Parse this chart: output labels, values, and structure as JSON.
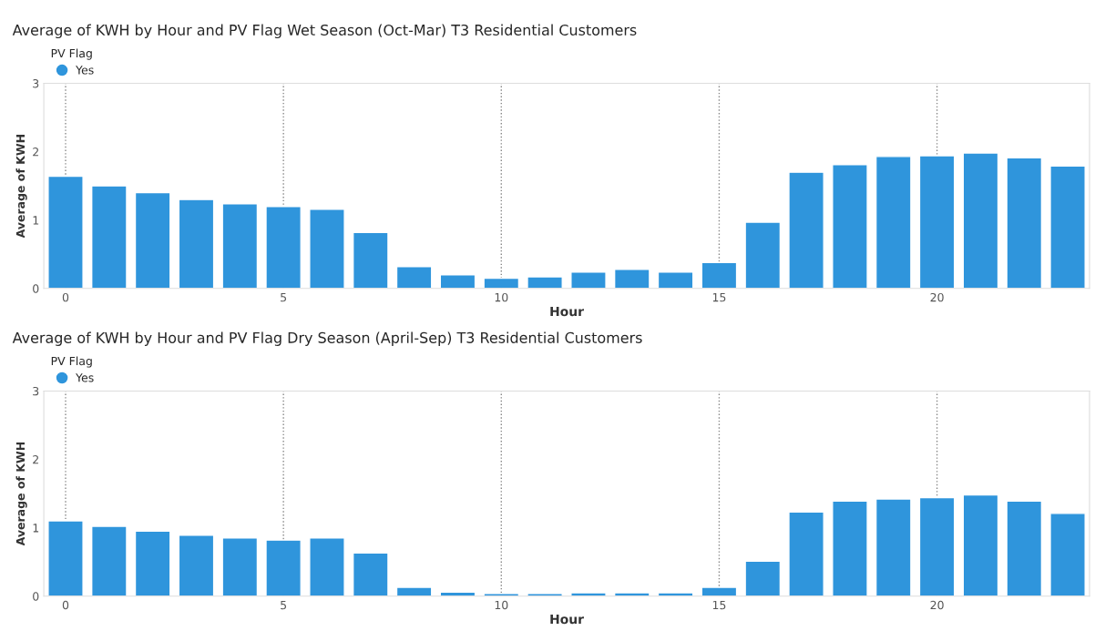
{
  "chart_data": [
    {
      "type": "bar",
      "title": "Average of KWH by Hour and PV Flag Wet Season (Oct-Mar) T3 Residential Customers",
      "xlabel": "Hour",
      "ylabel": "Average of KWH",
      "legend_title": "PV Flag",
      "legend": "top left",
      "grid": "x",
      "x": [
        0,
        1,
        2,
        3,
        4,
        5,
        6,
        7,
        8,
        9,
        10,
        11,
        12,
        13,
        14,
        15,
        16,
        17,
        18,
        19,
        20,
        21,
        22,
        23
      ],
      "series": [
        {
          "name": "Yes",
          "color": "#2f95dc",
          "values": [
            1.64,
            1.5,
            1.4,
            1.3,
            1.24,
            1.2,
            1.16,
            0.82,
            0.32,
            0.2,
            0.15,
            0.17,
            0.24,
            0.28,
            0.24,
            0.38,
            0.97,
            1.7,
            1.81,
            1.93,
            1.94,
            1.98,
            1.91,
            1.79
          ]
        }
      ],
      "xlim": [
        -0.5,
        23.5
      ],
      "xticks": [
        0,
        5,
        10,
        15,
        20
      ],
      "ylim": [
        0,
        3
      ],
      "yticks": [
        0,
        1,
        2,
        3
      ]
    },
    {
      "type": "bar",
      "title": "Average of KWH by Hour and PV Flag Dry Season (April-Sep) T3 Residential Customers",
      "xlabel": "Hour",
      "ylabel": "Average of KWH",
      "legend_title": "PV Flag",
      "legend": "top left",
      "grid": "x",
      "x": [
        0,
        1,
        2,
        3,
        4,
        5,
        6,
        7,
        8,
        9,
        10,
        11,
        12,
        13,
        14,
        15,
        16,
        17,
        18,
        19,
        20,
        21,
        22,
        23
      ],
      "series": [
        {
          "name": "Yes",
          "color": "#2f95dc",
          "values": [
            1.1,
            1.02,
            0.95,
            0.89,
            0.85,
            0.82,
            0.85,
            0.63,
            0.13,
            0.06,
            0.04,
            0.04,
            0.05,
            0.05,
            0.05,
            0.13,
            0.51,
            1.23,
            1.39,
            1.42,
            1.44,
            1.48,
            1.39,
            1.21
          ]
        }
      ],
      "xlim": [
        -0.5,
        23.5
      ],
      "xticks": [
        0,
        5,
        10,
        15,
        20
      ],
      "ylim": [
        0,
        3
      ],
      "yticks": [
        0,
        1,
        2,
        3
      ]
    }
  ]
}
